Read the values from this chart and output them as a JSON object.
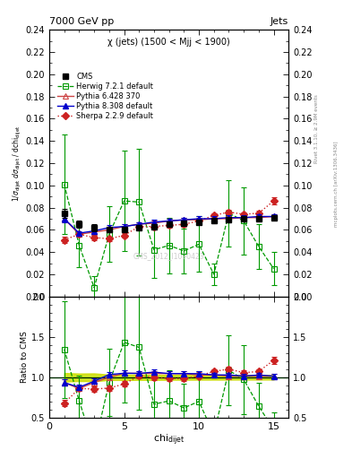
{
  "title_top": "7000 GeV pp",
  "title_right": "Jets",
  "subtitle": "χ (jets) (1500 < Mjj < 1900)",
  "ylabel_main": "1/σ_{dijet} dσ_{dijet} / dchi_{dijet}",
  "ylabel_ratio": "Ratio to CMS",
  "xlabel": "chi_{dijet}",
  "watermark": "CMS_2012_I1090423",
  "right_label1": "Rivet 3.1.10, ≥ 2.9M events",
  "right_label2": "mcplots.cern.ch [arXiv:1306.3436]",
  "cms_x": [
    1,
    2,
    3,
    4,
    5,
    6,
    7,
    8,
    9,
    10,
    11,
    12,
    13,
    14,
    15
  ],
  "cms_y": [
    0.075,
    0.065,
    0.062,
    0.06,
    0.06,
    0.062,
    0.063,
    0.065,
    0.066,
    0.067,
    0.068,
    0.069,
    0.07,
    0.07,
    0.071
  ],
  "cms_yerr": [
    0.004,
    0.003,
    0.003,
    0.002,
    0.002,
    0.002,
    0.002,
    0.002,
    0.002,
    0.002,
    0.002,
    0.002,
    0.002,
    0.002,
    0.002
  ],
  "herwig_x": [
    1,
    2,
    3,
    4,
    5,
    6,
    7,
    8,
    9,
    10,
    11,
    12,
    13,
    14,
    15
  ],
  "herwig_y": [
    0.101,
    0.046,
    0.008,
    0.056,
    0.086,
    0.085,
    0.042,
    0.046,
    0.041,
    0.047,
    0.02,
    0.075,
    0.068,
    0.045,
    0.025
  ],
  "herwig_yerr": [
    0.045,
    0.02,
    0.01,
    0.025,
    0.045,
    0.048,
    0.025,
    0.025,
    0.02,
    0.025,
    0.01,
    0.03,
    0.03,
    0.02,
    0.015
  ],
  "pythia6_x": [
    1,
    2,
    3,
    4,
    5,
    6,
    7,
    8,
    9,
    10,
    11,
    12,
    13,
    14,
    15
  ],
  "pythia6_y": [
    0.07,
    0.056,
    0.058,
    0.06,
    0.063,
    0.065,
    0.066,
    0.068,
    0.069,
    0.069,
    0.07,
    0.07,
    0.071,
    0.071,
    0.072
  ],
  "pythia6_yerr": [
    0.003,
    0.002,
    0.002,
    0.002,
    0.002,
    0.002,
    0.002,
    0.002,
    0.002,
    0.002,
    0.002,
    0.002,
    0.002,
    0.002,
    0.002
  ],
  "pythia8_x": [
    1,
    2,
    3,
    4,
    5,
    6,
    7,
    8,
    9,
    10,
    11,
    12,
    13,
    14,
    15
  ],
  "pythia8_y": [
    0.07,
    0.057,
    0.059,
    0.062,
    0.063,
    0.065,
    0.067,
    0.068,
    0.069,
    0.07,
    0.07,
    0.071,
    0.071,
    0.072,
    0.072
  ],
  "pythia8_yerr": [
    0.003,
    0.002,
    0.002,
    0.002,
    0.002,
    0.002,
    0.002,
    0.002,
    0.002,
    0.002,
    0.002,
    0.002,
    0.002,
    0.002,
    0.002
  ],
  "sherpa_x": [
    1,
    2,
    3,
    4,
    5,
    6,
    7,
    8,
    9,
    10,
    11,
    12,
    13,
    14,
    15
  ],
  "sherpa_y": [
    0.051,
    0.056,
    0.053,
    0.052,
    0.055,
    0.063,
    0.063,
    0.064,
    0.065,
    0.068,
    0.073,
    0.076,
    0.074,
    0.075,
    0.086
  ],
  "sherpa_yerr": [
    0.003,
    0.002,
    0.002,
    0.002,
    0.002,
    0.002,
    0.002,
    0.002,
    0.002,
    0.002,
    0.002,
    0.002,
    0.002,
    0.002,
    0.003
  ],
  "ylim_main": [
    0.0,
    0.24
  ],
  "ylim_ratio": [
    0.5,
    2.0
  ],
  "xlim": [
    0,
    16
  ],
  "cms_color": "#000000",
  "herwig_color": "#009900",
  "pythia6_color": "#cc4444",
  "pythia8_color": "#0000cc",
  "sherpa_color": "#cc2222",
  "yticks_main": [
    0.0,
    0.02,
    0.04,
    0.06,
    0.08,
    0.1,
    0.12,
    0.14,
    0.16,
    0.18,
    0.2,
    0.22,
    0.24
  ],
  "yticks_ratio": [
    0.5,
    1.0,
    1.5,
    2.0
  ],
  "xticks": [
    0,
    5,
    10,
    15
  ]
}
